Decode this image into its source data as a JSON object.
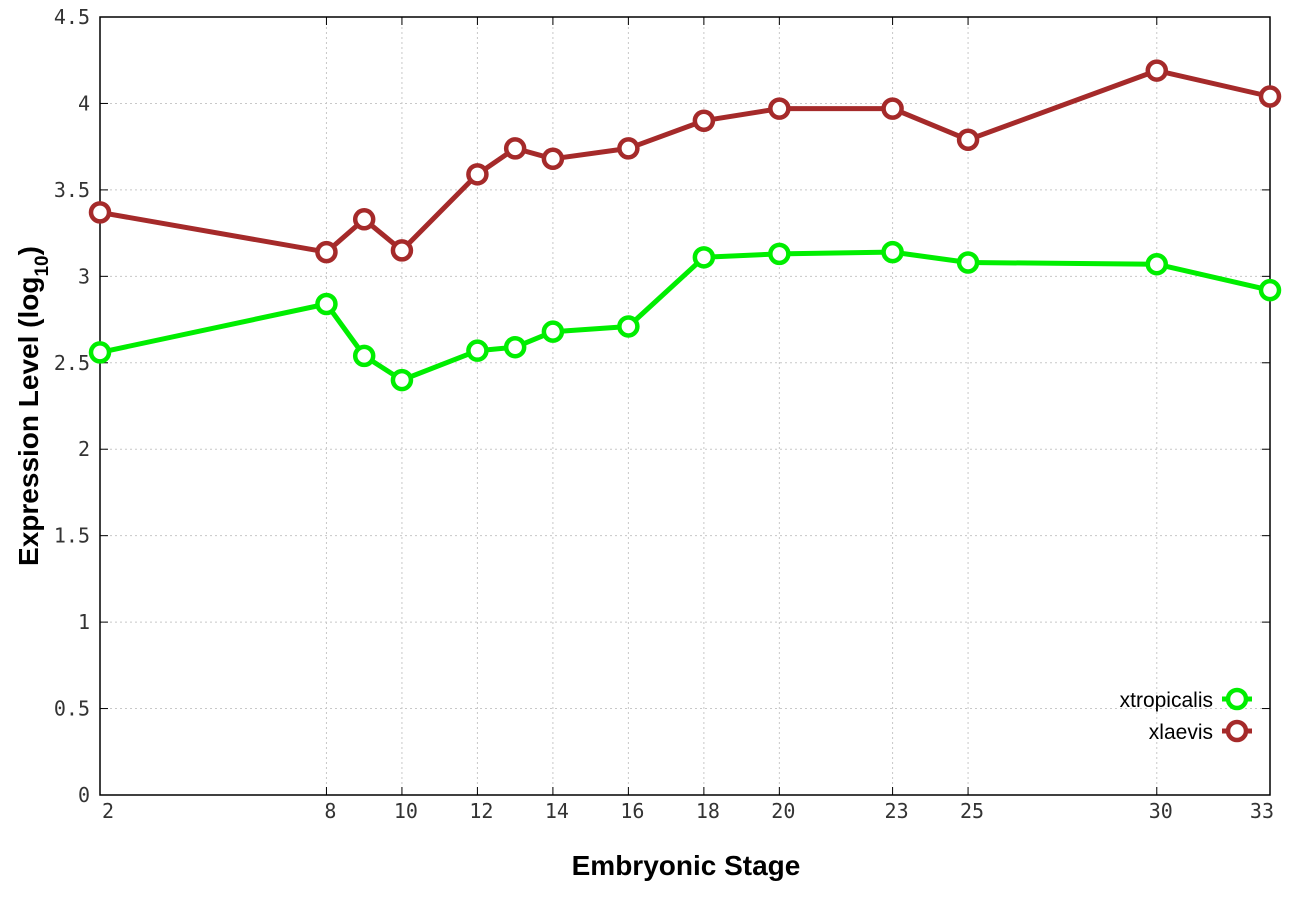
{
  "chart_data": {
    "type": "line",
    "title": "",
    "xlabel": "Embryonic Stage",
    "ylabel_main": "Expression Level (log",
    "ylabel_sub": "10",
    "ylabel_close": ")",
    "x_ticks": [
      "2",
      "8",
      "10",
      "12",
      "14",
      "16",
      "18",
      "20",
      "23",
      "25",
      "30",
      "33"
    ],
    "y_ticks": [
      "0",
      "0.5",
      "1",
      "1.5",
      "2",
      "2.5",
      "3",
      "3.5",
      "4",
      "4.5"
    ],
    "xlim": [
      2,
      33
    ],
    "ylim": [
      0,
      4.5
    ],
    "grid": true,
    "legend_position": "bottom-right",
    "x": [
      2,
      8,
      9,
      10,
      12,
      13,
      14,
      16,
      18,
      20,
      23,
      25,
      30,
      33
    ],
    "series": [
      {
        "name": "xtropicalis",
        "color": "#00ee00",
        "values": [
          2.56,
          2.84,
          2.54,
          2.4,
          2.57,
          2.59,
          2.68,
          2.71,
          3.11,
          3.13,
          3.14,
          3.08,
          3.07,
          2.92
        ]
      },
      {
        "name": "xlaevis",
        "color": "#a52a2a",
        "values": [
          3.37,
          3.14,
          3.33,
          3.15,
          3.59,
          3.74,
          3.68,
          3.74,
          3.9,
          3.97,
          3.97,
          3.79,
          4.19,
          4.04
        ]
      }
    ]
  }
}
